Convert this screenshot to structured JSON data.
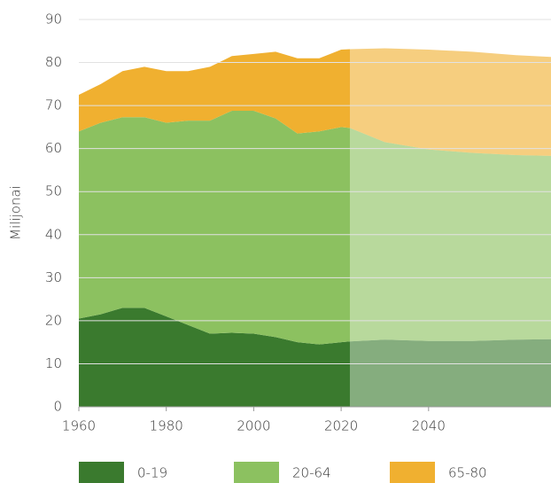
{
  "chart_data": {
    "type": "stacked_area",
    "y_label": "Milijonai",
    "x": [
      1960,
      1965,
      1970,
      1975,
      1980,
      1985,
      1990,
      1995,
      2000,
      2005,
      2010,
      2015,
      2020,
      2022,
      2030,
      2040,
      2050,
      2060,
      2068
    ],
    "series": [
      {
        "name": "0-19",
        "color": "#3a7a2e",
        "values": [
          20.5,
          21.5,
          23,
          23,
          21,
          19,
          17,
          17.2,
          17,
          16.2,
          15,
          14.5,
          15,
          15.2,
          15.6,
          15.3,
          15.3,
          15.6,
          15.7
        ]
      },
      {
        "name": "20-64",
        "color": "#8cc160",
        "values": [
          43.5,
          44.5,
          44.3,
          44.3,
          45,
          47.5,
          49.5,
          51.6,
          51.8,
          50.8,
          48.5,
          49.5,
          50,
          49.6,
          45.9,
          44.5,
          43.7,
          42.9,
          42.6
        ]
      },
      {
        "name": "65-80",
        "color": "#f0b030",
        "values": [
          8.5,
          9,
          10.7,
          11.7,
          12,
          11.5,
          12.5,
          12.7,
          13.2,
          15.5,
          17.5,
          17,
          18,
          18.3,
          21.8,
          23.2,
          23.5,
          23.2,
          23
        ]
      }
    ],
    "projection_from": 2022,
    "xlim": [
      1960,
      2068
    ],
    "xticks": [
      1960,
      1980,
      2000,
      2020,
      2040
    ],
    "ylim": [
      0,
      90
    ],
    "yticks": [
      0,
      10,
      20,
      30,
      40,
      50,
      60,
      70,
      80,
      90
    ],
    "grid": true
  }
}
